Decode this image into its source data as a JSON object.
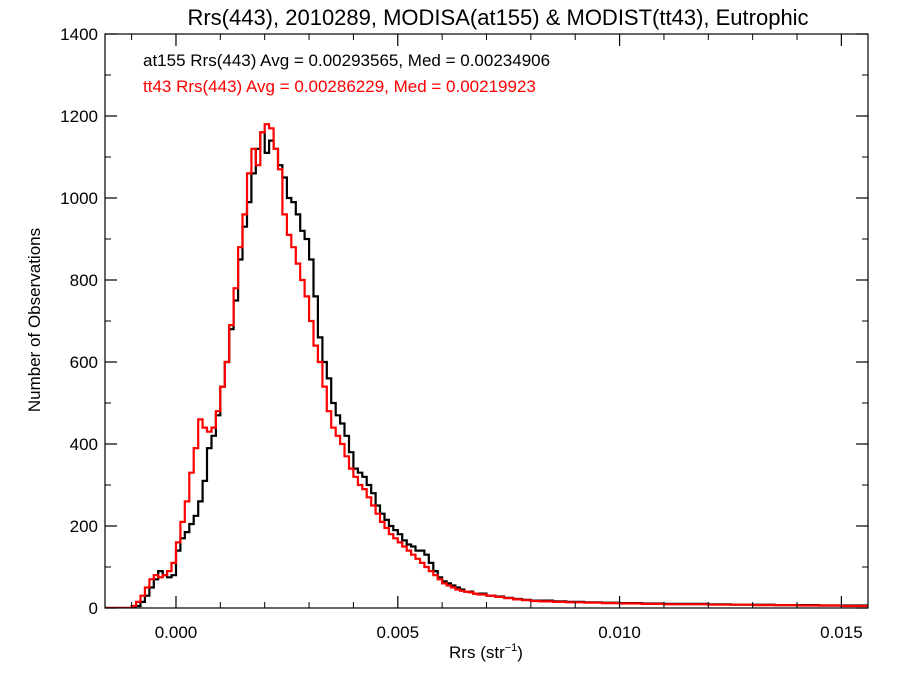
{
  "chart_data": {
    "type": "line",
    "title": "Rrs(443), 2010289, MODISA(at155) & MODIST(tt43), Eutrophic",
    "xlabel_main": "Rrs (str",
    "xlabel_sup": "−1",
    "xlabel_close": ")",
    "ylabel": "Number of Observations",
    "xlim": [
      -0.0016,
      0.0156
    ],
    "ylim": [
      0,
      1400
    ],
    "x_ticks": [
      {
        "value": 0.0,
        "label": "0.000"
      },
      {
        "value": 0.005,
        "label": "0.005"
      },
      {
        "value": 0.01,
        "label": "0.010"
      },
      {
        "value": 0.015,
        "label": "0.015"
      }
    ],
    "y_ticks": [
      {
        "value": 0,
        "label": "0"
      },
      {
        "value": 200,
        "label": "200"
      },
      {
        "value": 400,
        "label": "400"
      },
      {
        "value": 600,
        "label": "600"
      },
      {
        "value": 800,
        "label": "800"
      },
      {
        "value": 1000,
        "label": "1000"
      },
      {
        "value": 1200,
        "label": "1200"
      },
      {
        "value": 1400,
        "label": "1400"
      }
    ],
    "annotations": [
      {
        "text": "at155 Rrs(443) Avg = 0.00293565, Med = 0.00234906",
        "color": "#000000"
      },
      {
        "text": "tt43 Rrs(443) Avg = 0.00286229, Med = 0.00219923",
        "color": "#ff0000"
      }
    ],
    "series": [
      {
        "color": "#000000",
        "points": [
          [
            -0.0016,
            0
          ],
          [
            -0.001,
            0
          ],
          [
            -0.0009,
            5
          ],
          [
            -0.0008,
            15
          ],
          [
            -0.0007,
            30
          ],
          [
            -0.0006,
            50
          ],
          [
            -0.0005,
            70
          ],
          [
            -0.0004,
            90
          ],
          [
            -0.0003,
            80
          ],
          [
            -0.0002,
            75
          ],
          [
            -0.0001,
            80
          ],
          [
            0.0,
            140
          ],
          [
            0.0001,
            170
          ],
          [
            0.0002,
            185
          ],
          [
            0.0003,
            205
          ],
          [
            0.0004,
            225
          ],
          [
            0.0005,
            260
          ],
          [
            0.0006,
            310
          ],
          [
            0.0007,
            390
          ],
          [
            0.0008,
            420
          ],
          [
            0.0009,
            470
          ],
          [
            0.001,
            540
          ],
          [
            0.0011,
            600
          ],
          [
            0.0012,
            680
          ],
          [
            0.0013,
            750
          ],
          [
            0.0014,
            850
          ],
          [
            0.0015,
            930
          ],
          [
            0.0016,
            990
          ],
          [
            0.0017,
            1060
          ],
          [
            0.0018,
            1120
          ],
          [
            0.0019,
            1160
          ],
          [
            0.002,
            1110
          ],
          [
            0.0021,
            1140
          ],
          [
            0.0022,
            1120
          ],
          [
            0.0023,
            1080
          ],
          [
            0.0024,
            1050
          ],
          [
            0.0025,
            1000
          ],
          [
            0.0026,
            990
          ],
          [
            0.0027,
            960
          ],
          [
            0.0028,
            920
          ],
          [
            0.0029,
            900
          ],
          [
            0.003,
            850
          ],
          [
            0.0031,
            760
          ],
          [
            0.0032,
            660
          ],
          [
            0.0033,
            600
          ],
          [
            0.0034,
            560
          ],
          [
            0.0035,
            500
          ],
          [
            0.0036,
            470
          ],
          [
            0.0037,
            450
          ],
          [
            0.0038,
            420
          ],
          [
            0.0039,
            380
          ],
          [
            0.004,
            340
          ],
          [
            0.0041,
            330
          ],
          [
            0.0042,
            320
          ],
          [
            0.0043,
            300
          ],
          [
            0.0044,
            280
          ],
          [
            0.0045,
            250
          ],
          [
            0.0046,
            230
          ],
          [
            0.0047,
            215
          ],
          [
            0.0048,
            200
          ],
          [
            0.0049,
            190
          ],
          [
            0.005,
            180
          ],
          [
            0.0051,
            165
          ],
          [
            0.0052,
            155
          ],
          [
            0.0053,
            150
          ],
          [
            0.0054,
            140
          ],
          [
            0.0055,
            140
          ],
          [
            0.0056,
            130
          ],
          [
            0.0057,
            110
          ],
          [
            0.0058,
            90
          ],
          [
            0.0059,
            75
          ],
          [
            0.006,
            65
          ],
          [
            0.0061,
            60
          ],
          [
            0.0062,
            55
          ],
          [
            0.0063,
            50
          ],
          [
            0.0064,
            45
          ],
          [
            0.0065,
            40
          ],
          [
            0.0066,
            40
          ],
          [
            0.0067,
            35
          ],
          [
            0.0068,
            35
          ],
          [
            0.007,
            30
          ],
          [
            0.0072,
            28
          ],
          [
            0.0074,
            25
          ],
          [
            0.0076,
            22
          ],
          [
            0.0078,
            20
          ],
          [
            0.008,
            18
          ],
          [
            0.0082,
            18
          ],
          [
            0.0085,
            16
          ],
          [
            0.0088,
            15
          ],
          [
            0.0092,
            14
          ],
          [
            0.0096,
            13
          ],
          [
            0.01,
            12
          ],
          [
            0.0105,
            11
          ],
          [
            0.011,
            10
          ],
          [
            0.0115,
            10
          ],
          [
            0.012,
            9
          ],
          [
            0.0125,
            8
          ],
          [
            0.013,
            8
          ],
          [
            0.0135,
            7
          ],
          [
            0.014,
            7
          ],
          [
            0.0145,
            6
          ],
          [
            0.015,
            6
          ],
          [
            0.0156,
            5
          ]
        ]
      },
      {
        "color": "#ff0000",
        "points": [
          [
            -0.0016,
            0
          ],
          [
            -0.0011,
            0
          ],
          [
            -0.001,
            5
          ],
          [
            -0.0009,
            15
          ],
          [
            -0.0008,
            30
          ],
          [
            -0.0007,
            50
          ],
          [
            -0.0006,
            70
          ],
          [
            -0.0005,
            80
          ],
          [
            -0.0004,
            75
          ],
          [
            -0.0003,
            80
          ],
          [
            -0.0002,
            90
          ],
          [
            -0.0001,
            110
          ],
          [
            0.0,
            160
          ],
          [
            0.0001,
            210
          ],
          [
            0.0002,
            260
          ],
          [
            0.0003,
            330
          ],
          [
            0.0004,
            390
          ],
          [
            0.0005,
            460
          ],
          [
            0.0006,
            440
          ],
          [
            0.0007,
            430
          ],
          [
            0.0008,
            440
          ],
          [
            0.0009,
            480
          ],
          [
            0.001,
            540
          ],
          [
            0.0011,
            600
          ],
          [
            0.0012,
            690
          ],
          [
            0.0013,
            780
          ],
          [
            0.0014,
            880
          ],
          [
            0.0015,
            960
          ],
          [
            0.0016,
            1060
          ],
          [
            0.0017,
            1120
          ],
          [
            0.0018,
            1080
          ],
          [
            0.0019,
            1160
          ],
          [
            0.002,
            1180
          ],
          [
            0.0021,
            1170
          ],
          [
            0.0022,
            1120
          ],
          [
            0.0023,
            1070
          ],
          [
            0.0024,
            960
          ],
          [
            0.0025,
            910
          ],
          [
            0.0026,
            880
          ],
          [
            0.0027,
            840
          ],
          [
            0.0028,
            800
          ],
          [
            0.0029,
            760
          ],
          [
            0.003,
            700
          ],
          [
            0.0031,
            640
          ],
          [
            0.0032,
            600
          ],
          [
            0.0033,
            540
          ],
          [
            0.0034,
            480
          ],
          [
            0.0035,
            440
          ],
          [
            0.0036,
            420
          ],
          [
            0.0037,
            400
          ],
          [
            0.0038,
            370
          ],
          [
            0.0039,
            340
          ],
          [
            0.004,
            320
          ],
          [
            0.0041,
            300
          ],
          [
            0.0042,
            290
          ],
          [
            0.0043,
            270
          ],
          [
            0.0044,
            250
          ],
          [
            0.0045,
            230
          ],
          [
            0.0046,
            210
          ],
          [
            0.0047,
            195
          ],
          [
            0.0048,
            180
          ],
          [
            0.0049,
            170
          ],
          [
            0.005,
            160
          ],
          [
            0.0051,
            150
          ],
          [
            0.0052,
            140
          ],
          [
            0.0053,
            130
          ],
          [
            0.0054,
            120
          ],
          [
            0.0055,
            110
          ],
          [
            0.0056,
            100
          ],
          [
            0.0057,
            90
          ],
          [
            0.0058,
            80
          ],
          [
            0.0059,
            70
          ],
          [
            0.006,
            60
          ],
          [
            0.0061,
            55
          ],
          [
            0.0062,
            50
          ],
          [
            0.0063,
            45
          ],
          [
            0.0064,
            42
          ],
          [
            0.0065,
            40
          ],
          [
            0.0066,
            38
          ],
          [
            0.0067,
            35
          ],
          [
            0.0068,
            33
          ],
          [
            0.007,
            30
          ],
          [
            0.0072,
            27
          ],
          [
            0.0074,
            24
          ],
          [
            0.0076,
            21
          ],
          [
            0.0078,
            19
          ],
          [
            0.008,
            17
          ],
          [
            0.0082,
            16
          ],
          [
            0.0085,
            15
          ],
          [
            0.0088,
            14
          ],
          [
            0.0092,
            13
          ],
          [
            0.0096,
            12
          ],
          [
            0.01,
            11
          ],
          [
            0.0105,
            10
          ],
          [
            0.011,
            9
          ],
          [
            0.0115,
            9
          ],
          [
            0.012,
            8
          ],
          [
            0.0125,
            8
          ],
          [
            0.013,
            7
          ],
          [
            0.0135,
            7
          ],
          [
            0.014,
            6
          ],
          [
            0.0145,
            6
          ],
          [
            0.015,
            5
          ],
          [
            0.0156,
            5
          ]
        ]
      }
    ]
  }
}
